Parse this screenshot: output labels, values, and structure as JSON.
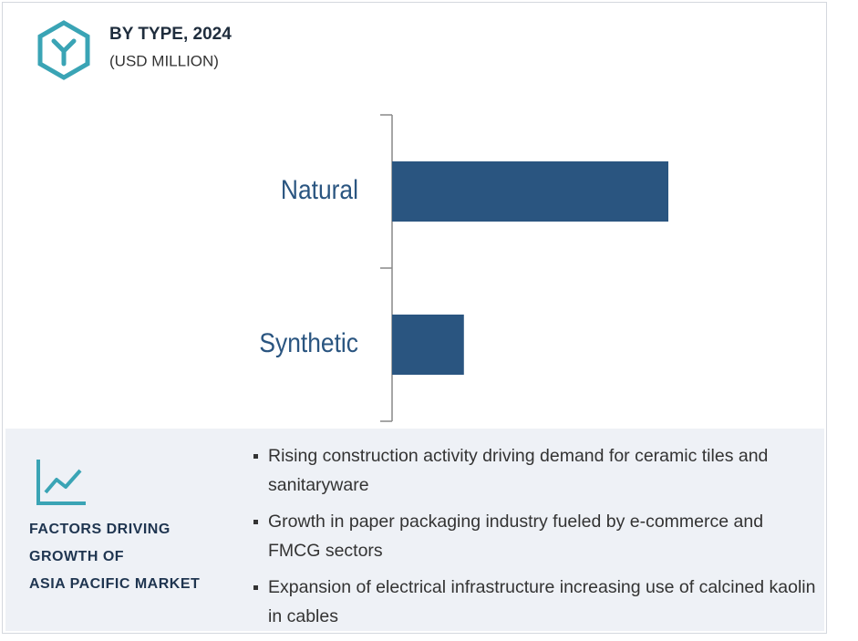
{
  "chart_data": {
    "type": "bar",
    "orientation": "horizontal",
    "title": "BY TYPE, 2024",
    "subtitle": "(USD MILLION)",
    "categories": [
      "Natural",
      "Synthetic"
    ],
    "values": [
      100,
      26
    ],
    "color": "#2a5580"
  },
  "factors": {
    "title_lines": [
      "FACTORS DRIVING",
      "GROWTH OF",
      "ASIA PACIFIC MARKET"
    ],
    "items": [
      "Rising construction activity driving demand for ceramic tiles and sanitaryware",
      "Growth in paper packaging industry fueled by e-commerce and FMCG sectors",
      "Expansion of electrical infrastructure increasing use of calcined kaolin in cables"
    ]
  }
}
